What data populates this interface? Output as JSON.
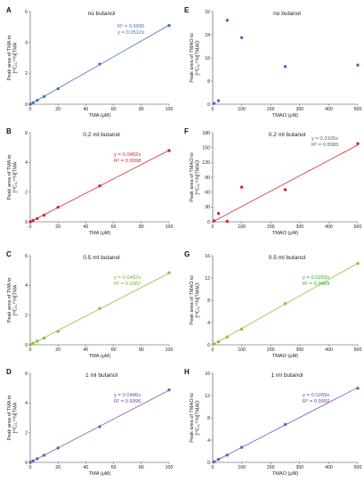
{
  "chart_data": [
    {
      "letter": "A",
      "type": "scatter",
      "title": "no butanol",
      "xlabel": "TMA (μM)",
      "ylabel_lines": [
        "Peak area of TMA to",
        "[¹³C₃,¹⁵N]TMA"
      ],
      "xlim": [
        0,
        100
      ],
      "ylim": [
        0,
        6
      ],
      "xticks": [
        0,
        20,
        40,
        60,
        80,
        100
      ],
      "yticks": [
        0,
        2,
        4,
        6
      ],
      "point_color": "#4472c4",
      "line_color": "#4472c4",
      "label_color": "#4472c4",
      "points": [
        [
          0,
          0
        ],
        [
          2,
          0.1
        ],
        [
          5,
          0.25
        ],
        [
          10,
          0.5
        ],
        [
          20,
          1.0
        ],
        [
          50,
          2.6
        ],
        [
          100,
          5.1
        ]
      ],
      "trendline": [
        [
          0,
          0
        ],
        [
          100,
          5.12
        ]
      ],
      "equation_lines": [
        "R² = 0.9995",
        "y = 0.0512x"
      ]
    },
    {
      "letter": "B",
      "type": "scatter",
      "title": "0.2 ml butanol",
      "xlabel": "TMA (μM)",
      "ylabel_lines": [
        "Peak area of TMA to",
        "[¹³C₃,¹⁵N]TMA"
      ],
      "xlim": [
        0,
        100
      ],
      "ylim": [
        0,
        6
      ],
      "xticks": [
        0,
        20,
        40,
        60,
        80,
        100
      ],
      "yticks": [
        0,
        2,
        4,
        6
      ],
      "point_color": "#d62728",
      "line_color": "#d62728",
      "label_color": "#d62728",
      "points": [
        [
          0,
          0
        ],
        [
          2,
          0.09
        ],
        [
          5,
          0.22
        ],
        [
          10,
          0.45
        ],
        [
          20,
          0.98
        ],
        [
          50,
          2.42
        ],
        [
          100,
          4.8
        ]
      ],
      "trendline": [
        [
          0,
          0
        ],
        [
          100,
          4.82
        ]
      ],
      "equation_lines": [
        "y = 0.0482x",
        "R² = 0.9998"
      ]
    },
    {
      "letter": "C",
      "type": "scatter",
      "title": "0.5 ml butanol",
      "xlabel": "TMA (μM)",
      "ylabel_lines": [
        "Peak area of TMA to",
        "[¹³C₃,¹⁵N]TMA"
      ],
      "xlim": [
        0,
        100
      ],
      "ylim": [
        0,
        6
      ],
      "xticks": [
        0,
        20,
        40,
        60,
        80,
        100
      ],
      "yticks": [
        0,
        2,
        4,
        6
      ],
      "point_color": "#8cbf3f",
      "line_color": "#8cbf3f",
      "label_color": "#7ab02c",
      "points": [
        [
          0,
          0
        ],
        [
          2,
          0.1
        ],
        [
          5,
          0.24
        ],
        [
          10,
          0.45
        ],
        [
          20,
          0.9
        ],
        [
          50,
          2.45
        ],
        [
          100,
          4.85
        ]
      ],
      "trendline": [
        [
          0,
          0
        ],
        [
          100,
          4.82
        ]
      ],
      "equation_lines": [
        "y = 0.0482x",
        "R² = 0.9987"
      ]
    },
    {
      "letter": "D",
      "type": "scatter",
      "title": "1 ml butanol",
      "xlabel": "TMA (μM)",
      "ylabel_lines": [
        "Peak area of TMA to",
        "[¹³C₃,¹⁵N]TMA"
      ],
      "xlim": [
        0,
        100
      ],
      "ylim": [
        0,
        6
      ],
      "xticks": [
        0,
        20,
        40,
        60,
        80,
        100
      ],
      "yticks": [
        0,
        2,
        4,
        6
      ],
      "point_color": "#7a5ab8",
      "line_color": "#7a5ab8",
      "label_color": "#7a3fa8",
      "points": [
        [
          0,
          0
        ],
        [
          2,
          0.1
        ],
        [
          5,
          0.24
        ],
        [
          10,
          0.48
        ],
        [
          20,
          0.97
        ],
        [
          50,
          2.4
        ],
        [
          100,
          4.88
        ]
      ],
      "trendline": [
        [
          0,
          0
        ],
        [
          100,
          4.86
        ]
      ],
      "equation_lines": [
        "y = 0.0486x",
        "R² = 0.9996"
      ]
    },
    {
      "letter": "E",
      "type": "scatter",
      "title": "no butanol",
      "xlabel": "TMAO (μM)",
      "ylabel_lines": [
        "Peak area of TMAO to",
        "[¹³C₃,¹⁵N]TMAO"
      ],
      "xlim": [
        0,
        500
      ],
      "ylim": [
        0,
        32
      ],
      "xticks": [
        0,
        100,
        200,
        300,
        400,
        500
      ],
      "yticks": [
        0,
        8,
        16,
        24,
        32
      ],
      "point_color": "#4472c4",
      "line_color": "#4472c4",
      "label_color": "#4472c4",
      "points": [
        [
          5,
          0.3
        ],
        [
          20,
          1.2
        ],
        [
          50,
          29.0
        ],
        [
          100,
          23.0
        ],
        [
          250,
          13.0
        ],
        [
          500,
          13.5
        ]
      ],
      "trendline": null,
      "equation_lines": []
    },
    {
      "letter": "F",
      "type": "scatter",
      "title": "0.2 ml butanol",
      "xlabel": "TMAO (μM)",
      "ylabel_lines": [
        "Peak area of TMAO to",
        "[¹³C₃,¹⁵N]TMAO"
      ],
      "xlim": [
        0,
        500
      ],
      "ylim": [
        0,
        180
      ],
      "xticks": [
        0,
        100,
        200,
        300,
        400,
        500
      ],
      "yticks": [
        0,
        30,
        60,
        90,
        120,
        150,
        180
      ],
      "point_color": "#d62728",
      "line_color": "#d62728",
      "label_color": "#666666",
      "points": [
        [
          5,
          2
        ],
        [
          20,
          17
        ],
        [
          50,
          1
        ],
        [
          100,
          70
        ],
        [
          250,
          65
        ],
        [
          500,
          158
        ]
      ],
      "trendline": [
        [
          0,
          0
        ],
        [
          500,
          155.25
        ]
      ],
      "equation_lines": [
        "y = 0.3105x",
        "R² = 0.8985"
      ]
    },
    {
      "letter": "G",
      "type": "scatter",
      "title": "0.5 ml butanol",
      "xlabel": "TMAO (μM)",
      "ylabel_lines": [
        "Peak area of TMAO to",
        "[¹³C₃,¹⁵N]TMAO"
      ],
      "xlim": [
        0,
        500
      ],
      "ylim": [
        0,
        16
      ],
      "xticks": [
        0,
        100,
        200,
        300,
        400,
        500
      ],
      "yticks": [
        0,
        4,
        8,
        12,
        16
      ],
      "point_color": "#8cbf3f",
      "line_color": "#8cbf3f",
      "label_color": "#3aa53a",
      "points": [
        [
          5,
          0.15
        ],
        [
          20,
          0.55
        ],
        [
          50,
          1.4
        ],
        [
          100,
          2.8
        ],
        [
          250,
          7.4
        ],
        [
          500,
          14.6
        ]
      ],
      "trendline": [
        [
          0,
          0
        ],
        [
          500,
          14.65
        ]
      ],
      "equation_lines": [
        "y = 0.0293x",
        "R² = 0.9989"
      ]
    },
    {
      "letter": "H",
      "type": "scatter",
      "title": "1 ml butanol",
      "xlabel": "TMAO (μM)",
      "ylabel_lines": [
        "Peak area of TMAO to",
        "[¹³C₃,¹⁵N]TMAO"
      ],
      "xlim": [
        0,
        500
      ],
      "ylim": [
        0,
        16
      ],
      "xticks": [
        0,
        100,
        200,
        300,
        400,
        500
      ],
      "yticks": [
        0,
        4,
        8,
        12,
        16
      ],
      "point_color": "#7a5ab8",
      "line_color": "#7a5ab8",
      "label_color": "#7a3fa8",
      "points": [
        [
          5,
          0.1
        ],
        [
          20,
          0.55
        ],
        [
          50,
          1.3
        ],
        [
          100,
          2.7
        ],
        [
          250,
          6.8
        ],
        [
          500,
          13.3
        ]
      ],
      "trendline": [
        [
          0,
          0
        ],
        [
          500,
          13.45
        ]
      ],
      "equation_lines": [
        "y = 0.0269x",
        "R² = 0.9992"
      ]
    }
  ]
}
